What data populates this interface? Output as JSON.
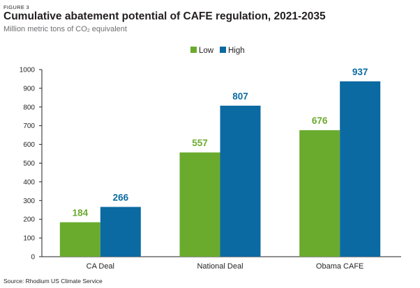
{
  "figure_label": "FIGURE 3",
  "title": "Cumulative abatement potential of CAFE regulation, 2021-2035",
  "subtitle_prefix": "Million metric tons of CO",
  "subtitle_sub": "2",
  "subtitle_suffix": " equivalent",
  "source": "Source: Rhodium US Climate Service",
  "colors": {
    "low": "#6aab2e",
    "high": "#0b6aa2",
    "axis": "#231f20"
  },
  "chart_data": {
    "type": "bar",
    "categories": [
      "CA Deal",
      "National Deal",
      "Obama CAFE"
    ],
    "series": [
      {
        "name": "Low",
        "values": [
          184,
          557,
          676
        ]
      },
      {
        "name": "High",
        "values": [
          266,
          807,
          937
        ]
      }
    ],
    "ylim": [
      0,
      1000
    ],
    "yticks": [
      0,
      100,
      200,
      300,
      400,
      500,
      600,
      700,
      800,
      900,
      1000
    ],
    "legend_position": "top-center",
    "grid": false
  }
}
